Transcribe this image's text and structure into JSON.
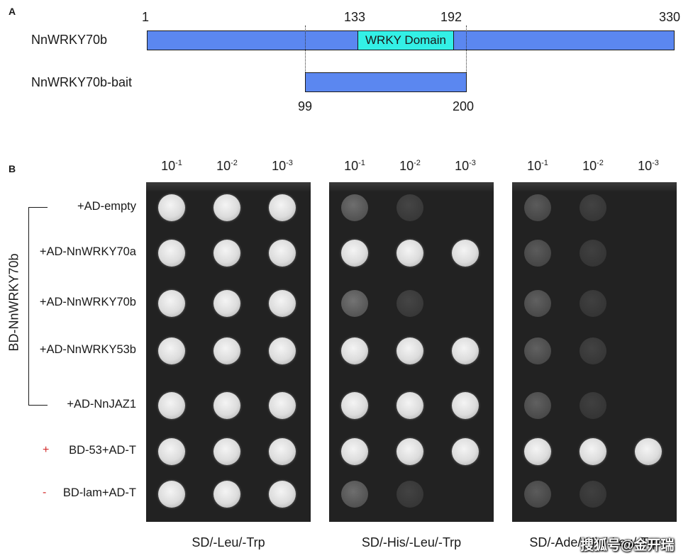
{
  "panel_a": {
    "letter": "A",
    "full_label": "NnWRKY70b",
    "bait_label": "NnWRKY70b-bait",
    "pos_start": "1",
    "pos_domain_start": "133",
    "pos_domain_end": "192",
    "pos_end": "330",
    "bait_start": "99",
    "bait_end": "200",
    "domain_label": "WRKY Domain",
    "colors": {
      "bar": "#5b87f0",
      "domain": "#33f0e6"
    }
  },
  "panel_b": {
    "letter": "B",
    "construct_label": "BD-NnWRKY70b",
    "dilutions": [
      "10",
      "10",
      "10"
    ],
    "dilution_exponents": [
      "-1",
      "-2",
      "-3"
    ],
    "rows": [
      {
        "sign": "",
        "label": "+AD-empty"
      },
      {
        "sign": "",
        "label": "+AD-NnWRKY70a"
      },
      {
        "sign": "",
        "label": "+AD-NnWRKY70b"
      },
      {
        "sign": "",
        "label": "+AD-NnWRKY53b"
      },
      {
        "sign": "",
        "label": "+AD-NnJAZ1"
      },
      {
        "sign": "+",
        "label": "BD-53+AD-T"
      },
      {
        "sign": "-",
        "label": "BD-lam+AD-T"
      }
    ],
    "media": [
      "SD/-Leu/-Trp",
      "SD/-His/-Leu/-Trp",
      "SD/-Ade/-His/-Leu/-Trp"
    ],
    "growth_levels": [
      [
        [
          1,
          1,
          1
        ],
        [
          1,
          1,
          1
        ],
        [
          1,
          1,
          1
        ],
        [
          1,
          1,
          1
        ],
        [
          1,
          1,
          1
        ],
        [
          1,
          1,
          1
        ],
        [
          1,
          1,
          1
        ]
      ],
      [
        [
          0.45,
          0.12,
          0
        ],
        [
          1,
          1,
          1
        ],
        [
          0.5,
          0.12,
          0
        ],
        [
          1,
          1,
          1
        ],
        [
          1,
          1,
          1
        ],
        [
          1,
          1,
          1
        ],
        [
          0.45,
          0.1,
          0
        ]
      ],
      [
        [
          0.3,
          0.1,
          0
        ],
        [
          0.3,
          0.08,
          0
        ],
        [
          0.35,
          0.08,
          0
        ],
        [
          0.35,
          0.1,
          0
        ],
        [
          0.35,
          0.08,
          0
        ],
        [
          1,
          1,
          1
        ],
        [
          0.3,
          0.08,
          0
        ]
      ]
    ],
    "colors": {
      "plate": "#222222",
      "colony": "#e8e8e8",
      "positive_sign": "#d32b2b"
    }
  },
  "watermark": "搜狐号@金开瑞"
}
